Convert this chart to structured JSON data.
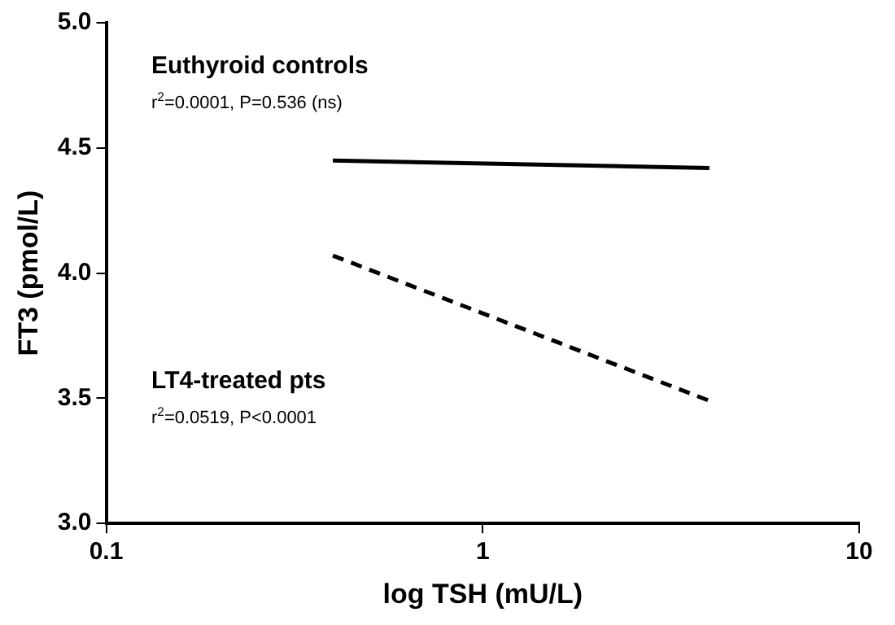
{
  "chart_data": {
    "type": "line",
    "xlabel": "log TSH (mU/L)",
    "ylabel": "FT3 (pmol/L)",
    "x": [
      0.4,
      4
    ],
    "series": [
      {
        "color": "#000000",
        "values": [
          4.45,
          4.42
        ],
        "line_style": "solid"
      },
      {
        "color": "#000000",
        "values": [
          4.07,
          3.49
        ],
        "line_style": "dashed"
      }
    ],
    "log": "x",
    "xlim": [
      0.1,
      10
    ],
    "xticks": [
      0.1,
      1,
      10
    ],
    "ylim": [
      3.0,
      5.0
    ],
    "yticks": [
      {
        "value": 3,
        "label": "3.0"
      },
      {
        "value": 3.5,
        "label": "3.5"
      },
      {
        "value": 4,
        "label": "4.0"
      },
      {
        "value": 4.5,
        "label": "4.5"
      },
      {
        "value": 5,
        "label": "5.0"
      }
    ],
    "grid": false,
    "legend": false,
    "marker": "none",
    "annotations": [
      "Euthyroid controls",
      "r$^{2}$=0.0001, P=0.536 (ns)",
      "LT4-treated pts",
      "r$^{2}$=0.0519, P<0.0001"
    ]
  }
}
